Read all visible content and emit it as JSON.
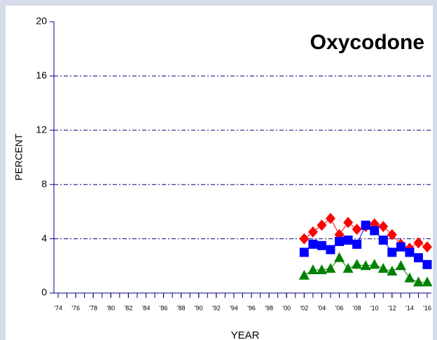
{
  "chart_data": {
    "type": "line",
    "title": "Oxycodone",
    "y_label": "PERCENT",
    "x_label": "YEAR",
    "x": [
      2002,
      2003,
      2004,
      2005,
      2006,
      2007,
      2008,
      2009,
      2010,
      2011,
      2012,
      2013,
      2014,
      2015,
      2016
    ],
    "series": [
      {
        "color": "#ff0000",
        "marker": "diamond",
        "values": [
          4.0,
          4.5,
          5.0,
          5.5,
          4.3,
          5.2,
          4.7,
          4.9,
          5.1,
          4.9,
          4.3,
          3.6,
          3.3,
          3.7,
          3.4
        ]
      },
      {
        "color": "#0000ff",
        "marker": "square",
        "values": [
          3.0,
          3.6,
          3.5,
          3.2,
          3.8,
          3.9,
          3.6,
          5.0,
          4.6,
          3.9,
          3.0,
          3.4,
          3.0,
          2.6,
          2.1
        ]
      },
      {
        "color": "#008000",
        "marker": "triangle",
        "values": [
          1.3,
          1.7,
          1.7,
          1.8,
          2.6,
          1.8,
          2.1,
          2.0,
          2.1,
          1.8,
          1.6,
          2.0,
          1.1,
          0.8,
          0.8
        ]
      }
    ],
    "xlim": [
      1974,
      2016
    ],
    "xticks": [
      {
        "value": 1974,
        "label": "'74"
      },
      {
        "value": 1976,
        "label": "'76"
      },
      {
        "value": 1978,
        "label": "'78"
      },
      {
        "value": 1980,
        "label": "'80"
      },
      {
        "value": 1982,
        "label": "'82"
      },
      {
        "value": 1984,
        "label": "'84"
      },
      {
        "value": 1986,
        "label": "'86"
      },
      {
        "value": 1988,
        "label": "'88"
      },
      {
        "value": 1990,
        "label": "'90"
      },
      {
        "value": 1992,
        "label": "'92"
      },
      {
        "value": 1994,
        "label": "'94"
      },
      {
        "value": 1996,
        "label": "'96"
      },
      {
        "value": 1998,
        "label": "'98"
      },
      {
        "value": 2000,
        "label": "'00"
      },
      {
        "value": 2002,
        "label": "'02"
      },
      {
        "value": 2004,
        "label": "'04"
      },
      {
        "value": 2006,
        "label": "'06"
      },
      {
        "value": 2008,
        "label": "'08"
      },
      {
        "value": 2010,
        "label": "'10"
      },
      {
        "value": 2012,
        "label": "'12"
      },
      {
        "value": 2014,
        "label": "'14"
      },
      {
        "value": 2016,
        "label": "'16"
      }
    ],
    "ylim": [
      0,
      20
    ],
    "yticks": [
      0,
      4,
      8,
      12,
      16,
      20
    ],
    "grid": true
  }
}
